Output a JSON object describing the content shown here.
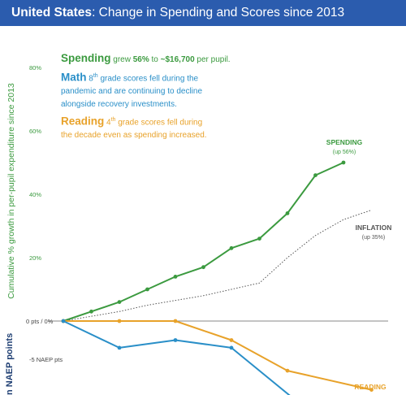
{
  "banner": {
    "country": "United States",
    "title": ": Change in Spending and Scores since 2013"
  },
  "axis": {
    "y_top_label": "Cumulative % growth in per-pupil expenditure since 2013",
    "y_bottom_label": "n NAEP points"
  },
  "annotations": {
    "spending": {
      "head": "Spending",
      "pre": " grew ",
      "pct": "56%",
      "mid": " to ",
      "amount": "~$16,700",
      "post": " per pupil."
    },
    "math": {
      "head": "Math",
      "grade_num": " 8",
      "grade_sup": "th",
      "line1": " grade scores fell during the",
      "line2": "pandemic and are continuing to decline",
      "line3": "alongside recovery investments."
    },
    "reading": {
      "head": "Reading",
      "grade_num": " 4",
      "grade_sup": "th",
      "line1": " grade scores fell during",
      "line2": "the decade even as spending increased."
    }
  },
  "colors": {
    "banner": "#2b5cae",
    "spending": "#3b9a3f",
    "math": "#2a8fc8",
    "reading": "#e8a22a",
    "inflation": "#555555",
    "zero_line": "#888888"
  },
  "chart_data": {
    "type": "line",
    "title": "United States: Change in Spending and Scores since 2013",
    "ylabel": "Cumulative % growth in per-pupil expenditure since 2013",
    "ylim": [
      -10,
      80
    ],
    "pct_ticks": [
      {
        "value": 80,
        "label": "80%"
      },
      {
        "value": 60,
        "label": "60%"
      },
      {
        "value": 40,
        "label": "40%"
      },
      {
        "value": 20,
        "label": "20%"
      }
    ],
    "zero_label": "0 pts / 0%",
    "pts_ticks": [
      {
        "value": -5,
        "label": "-5 NAEP pts"
      }
    ],
    "series": [
      {
        "name": "SPENDING",
        "sublabel": "(up 56%)",
        "unit": "percent",
        "x": [
          0,
          1,
          2,
          3,
          4,
          5,
          6,
          7,
          8,
          9,
          10,
          11
        ],
        "values": [
          0,
          3,
          6,
          10,
          14,
          17,
          23,
          26,
          34,
          46,
          50,
          null
        ]
      },
      {
        "name": "INFLATION",
        "sublabel": "(up 35%)",
        "unit": "percent",
        "x": [
          0,
          1,
          2,
          3,
          4,
          5,
          6,
          7,
          8,
          9,
          10,
          11
        ],
        "values": [
          0,
          1.5,
          3,
          5,
          6.5,
          8,
          10,
          12,
          20,
          27,
          32,
          35
        ]
      },
      {
        "name": "READING",
        "sublabel": "",
        "unit": "NAEP points",
        "x": [
          0,
          2,
          4,
          6,
          8,
          11
        ],
        "values": [
          0,
          0,
          0,
          -2.5,
          -6.5,
          -9
        ]
      },
      {
        "name": "",
        "sublabel": "",
        "unit": "NAEP points",
        "x": [
          0,
          2,
          4,
          6,
          8.5
        ],
        "values": [
          0,
          -3.5,
          -2.5,
          -3.5,
          -11
        ]
      }
    ]
  }
}
